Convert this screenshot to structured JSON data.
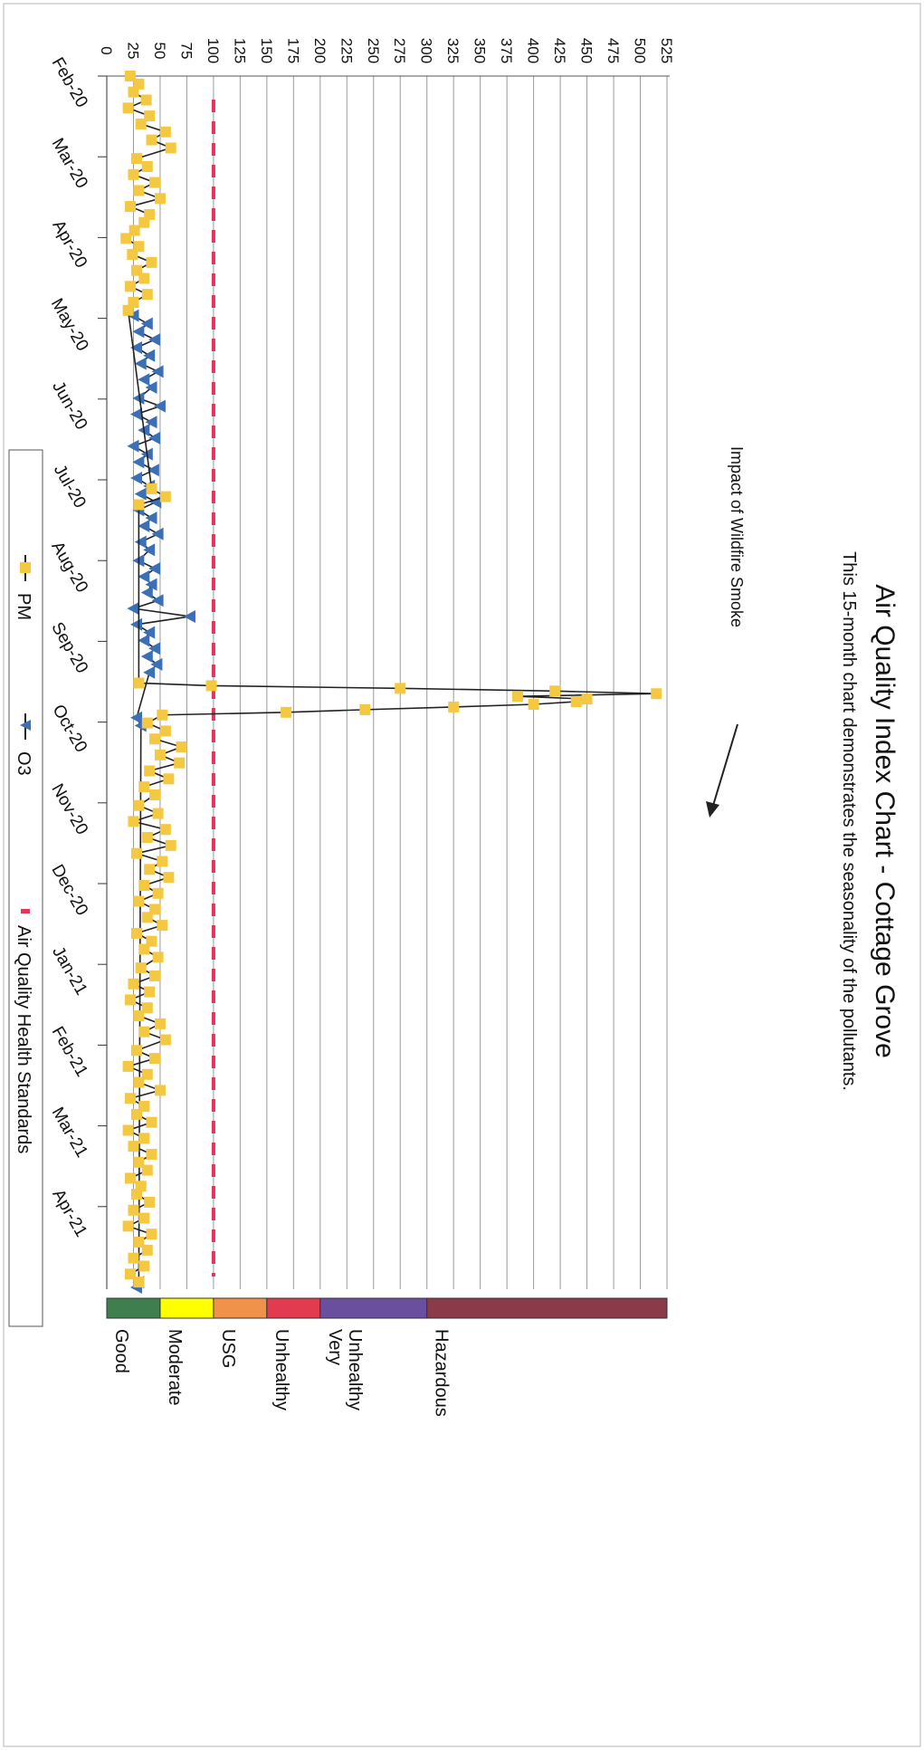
{
  "chart_data": {
    "type": "line",
    "title": "Air Quality Index Chart - Cottage Grove",
    "subtitle": "This 15-month chart demonstrates the seasonality of the pollutants.",
    "annotation": "Impact of Wildfire Smoke",
    "x_tick_labels": [
      "Feb-20",
      "Mar-20",
      "Apr-20",
      "May-20",
      "Jun-20",
      "Jul-20",
      "Aug-20",
      "Sep-20",
      "Oct-20",
      "Nov-20",
      "Dec-20",
      "Jan-21",
      "Feb-21",
      "Mar-21",
      "Apr-21"
    ],
    "y_ticks": [
      0,
      25,
      50,
      75,
      100,
      125,
      150,
      175,
      200,
      225,
      250,
      275,
      300,
      325,
      350,
      375,
      400,
      425,
      450,
      475,
      500,
      525
    ],
    "ylim": [
      0,
      525
    ],
    "grid": true,
    "legend_position": "bottom",
    "series": [
      {
        "name": "PM",
        "color": "#f5c842",
        "marker": "square",
        "data": [
          [
            "2020-02-01",
            22
          ],
          [
            "2020-02-04",
            30
          ],
          [
            "2020-02-07",
            25
          ],
          [
            "2020-02-10",
            37
          ],
          [
            "2020-02-13",
            20
          ],
          [
            "2020-02-16",
            40
          ],
          [
            "2020-02-19",
            32
          ],
          [
            "2020-02-22",
            55
          ],
          [
            "2020-02-25",
            42
          ],
          [
            "2020-02-28",
            60
          ],
          [
            "2020-03-03",
            28
          ],
          [
            "2020-03-06",
            38
          ],
          [
            "2020-03-09",
            25
          ],
          [
            "2020-03-12",
            45
          ],
          [
            "2020-03-15",
            30
          ],
          [
            "2020-03-18",
            50
          ],
          [
            "2020-03-21",
            22
          ],
          [
            "2020-03-24",
            40
          ],
          [
            "2020-03-27",
            35
          ],
          [
            "2020-03-30",
            26
          ],
          [
            "2020-04-02",
            18
          ],
          [
            "2020-04-05",
            30
          ],
          [
            "2020-04-08",
            24
          ],
          [
            "2020-04-11",
            42
          ],
          [
            "2020-04-14",
            28
          ],
          [
            "2020-04-17",
            35
          ],
          [
            "2020-04-20",
            22
          ],
          [
            "2020-04-23",
            38
          ],
          [
            "2020-04-26",
            25
          ],
          [
            "2020-04-29",
            20
          ],
          [
            "2020-07-05",
            42
          ],
          [
            "2020-07-08",
            55
          ],
          [
            "2020-07-11",
            30
          ],
          [
            "2020-09-16",
            30
          ],
          [
            "2020-09-17",
            98
          ],
          [
            "2020-09-18",
            275
          ],
          [
            "2020-09-19",
            420
          ],
          [
            "2020-09-20",
            515
          ],
          [
            "2020-09-21",
            385
          ],
          [
            "2020-09-22",
            450
          ],
          [
            "2020-09-23",
            440
          ],
          [
            "2020-09-24",
            400
          ],
          [
            "2020-09-25",
            325
          ],
          [
            "2020-09-26",
            242
          ],
          [
            "2020-09-27",
            168
          ],
          [
            "2020-09-28",
            52
          ],
          [
            "2020-10-01",
            38
          ],
          [
            "2020-10-04",
            55
          ],
          [
            "2020-10-07",
            45
          ],
          [
            "2020-10-10",
            70
          ],
          [
            "2020-10-13",
            50
          ],
          [
            "2020-10-16",
            68
          ],
          [
            "2020-10-19",
            40
          ],
          [
            "2020-10-22",
            58
          ],
          [
            "2020-10-25",
            35
          ],
          [
            "2020-10-28",
            45
          ],
          [
            "2020-11-01",
            30
          ],
          [
            "2020-11-04",
            48
          ],
          [
            "2020-11-07",
            25
          ],
          [
            "2020-11-10",
            55
          ],
          [
            "2020-11-13",
            38
          ],
          [
            "2020-11-16",
            60
          ],
          [
            "2020-11-19",
            28
          ],
          [
            "2020-11-22",
            52
          ],
          [
            "2020-11-25",
            40
          ],
          [
            "2020-11-28",
            58
          ],
          [
            "2020-12-01",
            35
          ],
          [
            "2020-12-04",
            48
          ],
          [
            "2020-12-07",
            30
          ],
          [
            "2020-12-10",
            45
          ],
          [
            "2020-12-13",
            38
          ],
          [
            "2020-12-16",
            52
          ],
          [
            "2020-12-19",
            28
          ],
          [
            "2020-12-22",
            42
          ],
          [
            "2020-12-25",
            35
          ],
          [
            "2020-12-28",
            48
          ],
          [
            "2021-01-01",
            32
          ],
          [
            "2021-01-04",
            45
          ],
          [
            "2021-01-07",
            25
          ],
          [
            "2021-01-10",
            40
          ],
          [
            "2021-01-13",
            22
          ],
          [
            "2021-01-16",
            38
          ],
          [
            "2021-01-19",
            30
          ],
          [
            "2021-01-22",
            50
          ],
          [
            "2021-01-25",
            35
          ],
          [
            "2021-01-28",
            55
          ],
          [
            "2021-02-01",
            28
          ],
          [
            "2021-02-04",
            45
          ],
          [
            "2021-02-07",
            20
          ],
          [
            "2021-02-10",
            38
          ],
          [
            "2021-02-13",
            30
          ],
          [
            "2021-02-16",
            50
          ],
          [
            "2021-02-19",
            22
          ],
          [
            "2021-02-22",
            35
          ],
          [
            "2021-02-25",
            28
          ],
          [
            "2021-02-28",
            42
          ],
          [
            "2021-03-03",
            20
          ],
          [
            "2021-03-06",
            35
          ],
          [
            "2021-03-09",
            25
          ],
          [
            "2021-03-12",
            42
          ],
          [
            "2021-03-15",
            30
          ],
          [
            "2021-03-18",
            38
          ],
          [
            "2021-03-21",
            22
          ],
          [
            "2021-03-24",
            32
          ],
          [
            "2021-03-27",
            28
          ],
          [
            "2021-03-30",
            40
          ],
          [
            "2021-04-02",
            25
          ],
          [
            "2021-04-05",
            35
          ],
          [
            "2021-04-08",
            20
          ],
          [
            "2021-04-11",
            42
          ],
          [
            "2021-04-14",
            30
          ],
          [
            "2021-04-17",
            38
          ],
          [
            "2021-04-20",
            25
          ],
          [
            "2021-04-23",
            35
          ],
          [
            "2021-04-26",
            22
          ],
          [
            "2021-04-29",
            30
          ]
        ]
      },
      {
        "name": "O3",
        "color": "#3b6fb6",
        "marker": "triangle",
        "data": [
          [
            "2020-05-01",
            25
          ],
          [
            "2020-05-04",
            38
          ],
          [
            "2020-05-07",
            30
          ],
          [
            "2020-05-10",
            45
          ],
          [
            "2020-05-13",
            28
          ],
          [
            "2020-05-16",
            40
          ],
          [
            "2020-05-19",
            32
          ],
          [
            "2020-05-22",
            48
          ],
          [
            "2020-05-25",
            35
          ],
          [
            "2020-05-28",
            42
          ],
          [
            "2020-06-01",
            30
          ],
          [
            "2020-06-04",
            50
          ],
          [
            "2020-06-07",
            28
          ],
          [
            "2020-06-10",
            42
          ],
          [
            "2020-06-13",
            35
          ],
          [
            "2020-06-16",
            45
          ],
          [
            "2020-06-19",
            25
          ],
          [
            "2020-06-22",
            38
          ],
          [
            "2020-06-25",
            30
          ],
          [
            "2020-06-28",
            44
          ],
          [
            "2020-07-01",
            28
          ],
          [
            "2020-07-04",
            40
          ],
          [
            "2020-07-07",
            32
          ],
          [
            "2020-07-10",
            46
          ],
          [
            "2020-07-13",
            30
          ],
          [
            "2020-07-16",
            42
          ],
          [
            "2020-07-19",
            35
          ],
          [
            "2020-07-22",
            48
          ],
          [
            "2020-07-25",
            32
          ],
          [
            "2020-07-28",
            40
          ],
          [
            "2020-08-01",
            30
          ],
          [
            "2020-08-04",
            45
          ],
          [
            "2020-08-07",
            35
          ],
          [
            "2020-08-10",
            42
          ],
          [
            "2020-08-13",
            38
          ],
          [
            "2020-08-16",
            48
          ],
          [
            "2020-08-19",
            25
          ],
          [
            "2020-08-22",
            78
          ],
          [
            "2020-08-25",
            28
          ],
          [
            "2020-08-28",
            40
          ],
          [
            "2020-08-31",
            35
          ],
          [
            "2020-09-03",
            45
          ],
          [
            "2020-09-06",
            38
          ],
          [
            "2020-09-09",
            47
          ],
          [
            "2020-09-12",
            40
          ],
          [
            "2020-09-29",
            28
          ],
          [
            "2020-10-02",
            32
          ],
          [
            "2021-04-29",
            30
          ],
          [
            "2021-05-01",
            28
          ]
        ]
      },
      {
        "name": "Air Quality Health Standards",
        "color": "#e0365a",
        "style": "dashed",
        "value": 100
      }
    ],
    "aqi_bands": [
      {
        "label": "Good",
        "from": 0,
        "to": 50,
        "color": "#3f7f4f"
      },
      {
        "label": "Moderate",
        "from": 50,
        "to": 100,
        "color": "#ffff00"
      },
      {
        "label": "USG",
        "from": 100,
        "to": 150,
        "color": "#f0924a"
      },
      {
        "label": "Unhealthy",
        "from": 150,
        "to": 200,
        "color": "#e23a4f"
      },
      {
        "label": "Very Unhealthy",
        "from": 200,
        "to": 300,
        "color": "#6a4f9f"
      },
      {
        "label": "Hazardous",
        "from": 300,
        "to": 525,
        "color": "#8b3a4a"
      }
    ]
  }
}
